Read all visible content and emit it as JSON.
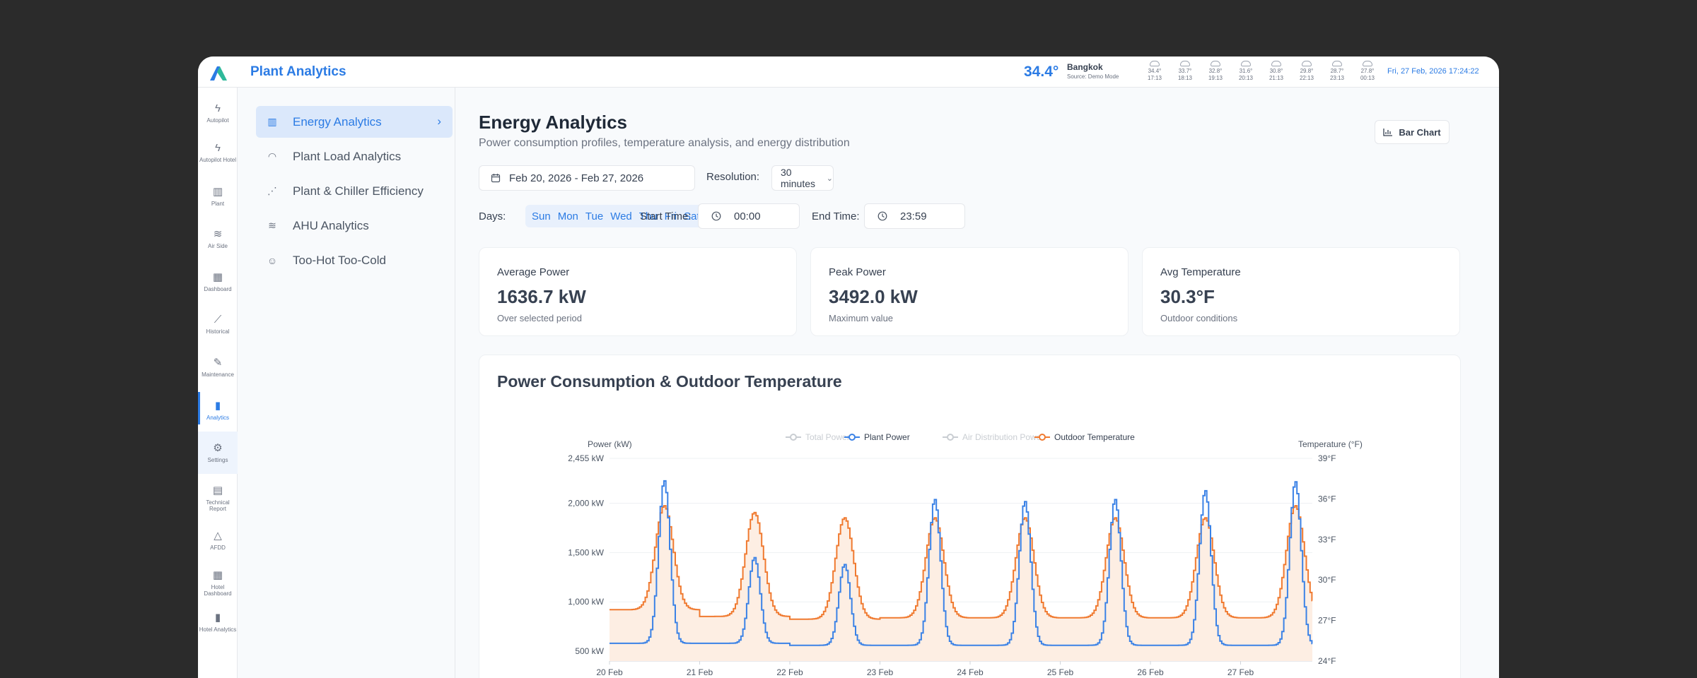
{
  "app": {
    "title": "Plant Analytics"
  },
  "weather": {
    "temp": "34.4°",
    "city": "Bangkok",
    "source": "Source: Demo Mode",
    "forecast": [
      {
        "temp": "34.4°",
        "time": "17:13"
      },
      {
        "temp": "33.7°",
        "time": "18:13"
      },
      {
        "temp": "32.8°",
        "time": "19:13"
      },
      {
        "temp": "31.6°",
        "time": "20:13"
      },
      {
        "temp": "30.8°",
        "time": "21:13"
      },
      {
        "temp": "29.8°",
        "time": "22:13"
      },
      {
        "temp": "28.7°",
        "time": "23:13"
      },
      {
        "temp": "27.8°",
        "time": "00:13"
      }
    ]
  },
  "datetime": "Fri, 27 Feb, 2026  17:24:22",
  "rail": [
    {
      "label": "Autopilot",
      "icon": "bolt-icon",
      "glyph": "ϟ"
    },
    {
      "label": "Autopilot Hotel",
      "icon": "bolt-icon",
      "glyph": "ϟ"
    },
    {
      "label": "Plant",
      "icon": "map-icon",
      "glyph": "▥"
    },
    {
      "label": "Air Side",
      "icon": "wind-icon",
      "glyph": "≋"
    },
    {
      "label": "Dashboard",
      "icon": "grid-icon",
      "glyph": "▦"
    },
    {
      "label": "Historical",
      "icon": "line-chart-icon",
      "glyph": "⟋"
    },
    {
      "label": "Maintenance",
      "icon": "wrench-icon",
      "glyph": "✎"
    },
    {
      "label": "Analytics",
      "icon": "bar-chart-icon",
      "glyph": "▮"
    },
    {
      "label": "Settings",
      "icon": "gear-icon",
      "glyph": "⚙"
    },
    {
      "label": "Technical Report",
      "icon": "clipboard-icon",
      "glyph": "▤"
    },
    {
      "label": "AFDD",
      "icon": "warning-icon",
      "glyph": "△"
    },
    {
      "label": "Hotel Dashboard",
      "icon": "grid-icon",
      "glyph": "▦"
    },
    {
      "label": "Hotel Analytics",
      "icon": "bar-chart-icon",
      "glyph": "▮"
    }
  ],
  "subnav": [
    {
      "label": "Energy Analytics",
      "icon": "bar-chart-icon",
      "glyph": "▥"
    },
    {
      "label": "Plant Load Analytics",
      "icon": "gauge-icon",
      "glyph": "◠"
    },
    {
      "label": "Plant & Chiller Efficiency",
      "icon": "scatter-icon",
      "glyph": "⋰"
    },
    {
      "label": "AHU Analytics",
      "icon": "wind-icon",
      "glyph": "≋"
    },
    {
      "label": "Too-Hot Too-Cold",
      "icon": "users-icon",
      "glyph": "☺"
    }
  ],
  "page": {
    "title": "Energy Analytics",
    "subtitle": "Power consumption profiles, temperature analysis, and energy distribution",
    "chart_toggle": "Bar Chart"
  },
  "filters": {
    "date_range": "Feb 20, 2026 - Feb 27, 2026",
    "resolution_label": "Resolution:",
    "resolution": "30 minutes",
    "days_label": "Days:",
    "days": [
      "Sun",
      "Mon",
      "Tue",
      "Wed",
      "Thu",
      "Fri",
      "Sat"
    ],
    "start_label": "Start Time:",
    "start": "00:00",
    "end_label": "End Time:",
    "end": "23:59"
  },
  "cards": [
    {
      "title": "Average Power",
      "value": "1636.7 kW",
      "sub": "Over selected period"
    },
    {
      "title": "Peak Power",
      "value": "3492.0 kW",
      "sub": "Maximum value"
    },
    {
      "title": "Avg Temperature",
      "value": "30.3°F",
      "sub": "Outdoor conditions"
    }
  ],
  "chart_data": {
    "type": "line",
    "title": "Power Consumption & Outdoor Temperature",
    "ylabel": "Power (kW)",
    "y2label": "Temperature (°F)",
    "ylim": [
      400,
      2455
    ],
    "y2lim": [
      24,
      39
    ],
    "yticks": [
      "2,455 kW",
      "2,000 kW",
      "1,500 kW",
      "1,000 kW",
      "500 kW"
    ],
    "y2ticks": [
      "39°F",
      "36°F",
      "33°F",
      "30°F",
      "27°F",
      "24°F"
    ],
    "xticks": [
      "20 Feb",
      "21 Feb",
      "22 Feb",
      "23 Feb",
      "24 Feb",
      "25 Feb",
      "26 Feb",
      "27 Feb"
    ],
    "legend": [
      {
        "name": "Total Power",
        "color": "#c9cdd2",
        "active": false
      },
      {
        "name": "Plant Power",
        "color": "#3b82e6",
        "active": true
      },
      {
        "name": "Air Distribution Power",
        "color": "#c9cdd2",
        "active": false
      },
      {
        "name": "Outdoor Temperature",
        "color": "#f07a30",
        "active": true
      }
    ],
    "days": [
      "20 Feb",
      "21 Feb",
      "22 Feb",
      "23 Feb",
      "24 Feb",
      "25 Feb",
      "26 Feb",
      "27 Feb"
    ],
    "series": [
      {
        "name": "Plant Power",
        "axis": "left",
        "color": "#3b82e6",
        "daily_min": [
          580,
          580,
          560,
          560,
          560,
          560,
          560,
          560
        ],
        "daily_peak": [
          2230,
          1450,
          1380,
          2040,
          2020,
          2040,
          2130,
          2220
        ]
      },
      {
        "name": "Outdoor Temperature",
        "axis": "right",
        "color": "#f07a30",
        "daily_min": [
          27.8,
          27.3,
          27.1,
          27.2,
          27.2,
          27.2,
          27.2,
          27.2
        ],
        "daily_peak": [
          35.5,
          35.0,
          34.6,
          34.6,
          34.6,
          34.6,
          34.6,
          35.5
        ]
      }
    ]
  }
}
